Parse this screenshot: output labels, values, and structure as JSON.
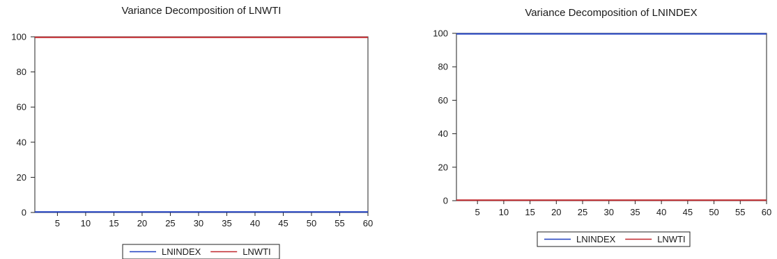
{
  "chart_data": [
    {
      "type": "line",
      "title": "Variance Decomposition of LNWTI",
      "xlabel": "",
      "ylabel": "",
      "xlim": [
        1,
        60
      ],
      "ylim": [
        0,
        100
      ],
      "x_ticks": [
        5,
        10,
        15,
        20,
        25,
        30,
        35,
        40,
        45,
        50,
        55,
        "60"
      ],
      "y_ticks": [
        0,
        20,
        40,
        60,
        80,
        100
      ],
      "legend": "bottom-center",
      "grid": false,
      "x": {
        "start": 1,
        "end": 60
      },
      "series": [
        {
          "name": "LNINDEX",
          "color": "#1f3fbf",
          "values_constant": 0.3
        },
        {
          "name": "LNWTI",
          "color": "#c0262b",
          "values_constant": 99.7
        }
      ]
    },
    {
      "type": "line",
      "title": "Variance Decomposition of LNINDEX",
      "xlabel": "",
      "ylabel": "",
      "xlim": [
        1,
        60
      ],
      "ylim": [
        0,
        100
      ],
      "x_ticks": [
        5,
        10,
        15,
        20,
        25,
        30,
        35,
        40,
        45,
        50,
        55,
        "60"
      ],
      "y_ticks": [
        0,
        20,
        40,
        60,
        80,
        100
      ],
      "legend": "bottom-center",
      "grid": false,
      "x": {
        "start": 1,
        "end": 60
      },
      "series": [
        {
          "name": "LNINDEX",
          "color": "#1f3fbf",
          "values_constant": 99.7
        },
        {
          "name": "LNWTI",
          "color": "#c0262b",
          "values_constant": 0.3
        }
      ]
    }
  ]
}
